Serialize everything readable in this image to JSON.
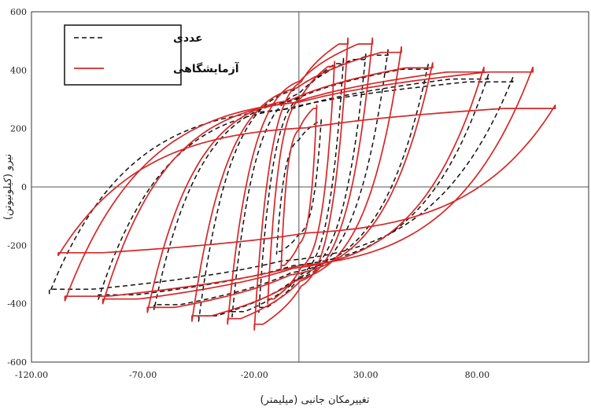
{
  "chart_data": {
    "type": "line",
    "xlabel": "تغییرمکان جانبی (میلیمتر)",
    "ylabel": "نیرو (کیلونیوتن)",
    "xlim": [
      -120,
      130
    ],
    "ylim": [
      -600,
      600
    ],
    "xticks": [
      "-120.00",
      "-70.00",
      "-20.00",
      "30.00",
      "80.00"
    ],
    "yticks": [
      "600",
      "400",
      "200",
      "0",
      "-200",
      "-400",
      "-600"
    ],
    "grid": false,
    "legend_position": "top-left",
    "series": [
      {
        "name": "عددی",
        "color": "#111111",
        "dash": "dashed",
        "loops": [
          {
            "pos": [
              10,
              230
            ],
            "neg": [
              -10,
              -230
            ]
          },
          {
            "pos": [
              20,
              440
            ],
            "neg": [
              -18,
              -430
            ]
          },
          {
            "pos": [
              30,
              455
            ],
            "neg": [
              -30,
              -445
            ]
          },
          {
            "pos": [
              40,
              470
            ],
            "neg": [
              -45,
              -460
            ]
          },
          {
            "pos": [
              58,
              420
            ],
            "neg": [
              -65,
              -420
            ]
          },
          {
            "pos": [
              85,
              385
            ],
            "neg": [
              -90,
              -385
            ]
          },
          {
            "pos": [
              96,
              375
            ],
            "neg": [
              -112,
              -365
            ]
          }
        ]
      },
      {
        "name": "آزمایشگاهی",
        "color": "#d62728",
        "dash": "solid",
        "loops": [
          {
            "pos": [
              8,
              280
            ],
            "neg": [
              -8,
              -280
            ]
          },
          {
            "pos": [
              16,
              430
            ],
            "neg": [
              -14,
              -400
            ]
          },
          {
            "pos": [
              22,
              510
            ],
            "neg": [
              -20,
              -490
            ]
          },
          {
            "pos": [
              33,
              510
            ],
            "neg": [
              -32,
              -470
            ]
          },
          {
            "pos": [
              46,
              480
            ],
            "neg": [
              -48,
              -460
            ]
          },
          {
            "pos": [
              60,
              425
            ],
            "neg": [
              -68,
              -430
            ]
          },
          {
            "pos": [
              83,
              410
            ],
            "neg": [
              -88,
              -400
            ]
          },
          {
            "pos": [
              105,
              410
            ],
            "neg": [
              -105,
              -390
            ]
          },
          {
            "pos": [
              115,
              280
            ],
            "neg": [
              -108,
              -235
            ]
          }
        ]
      }
    ]
  }
}
